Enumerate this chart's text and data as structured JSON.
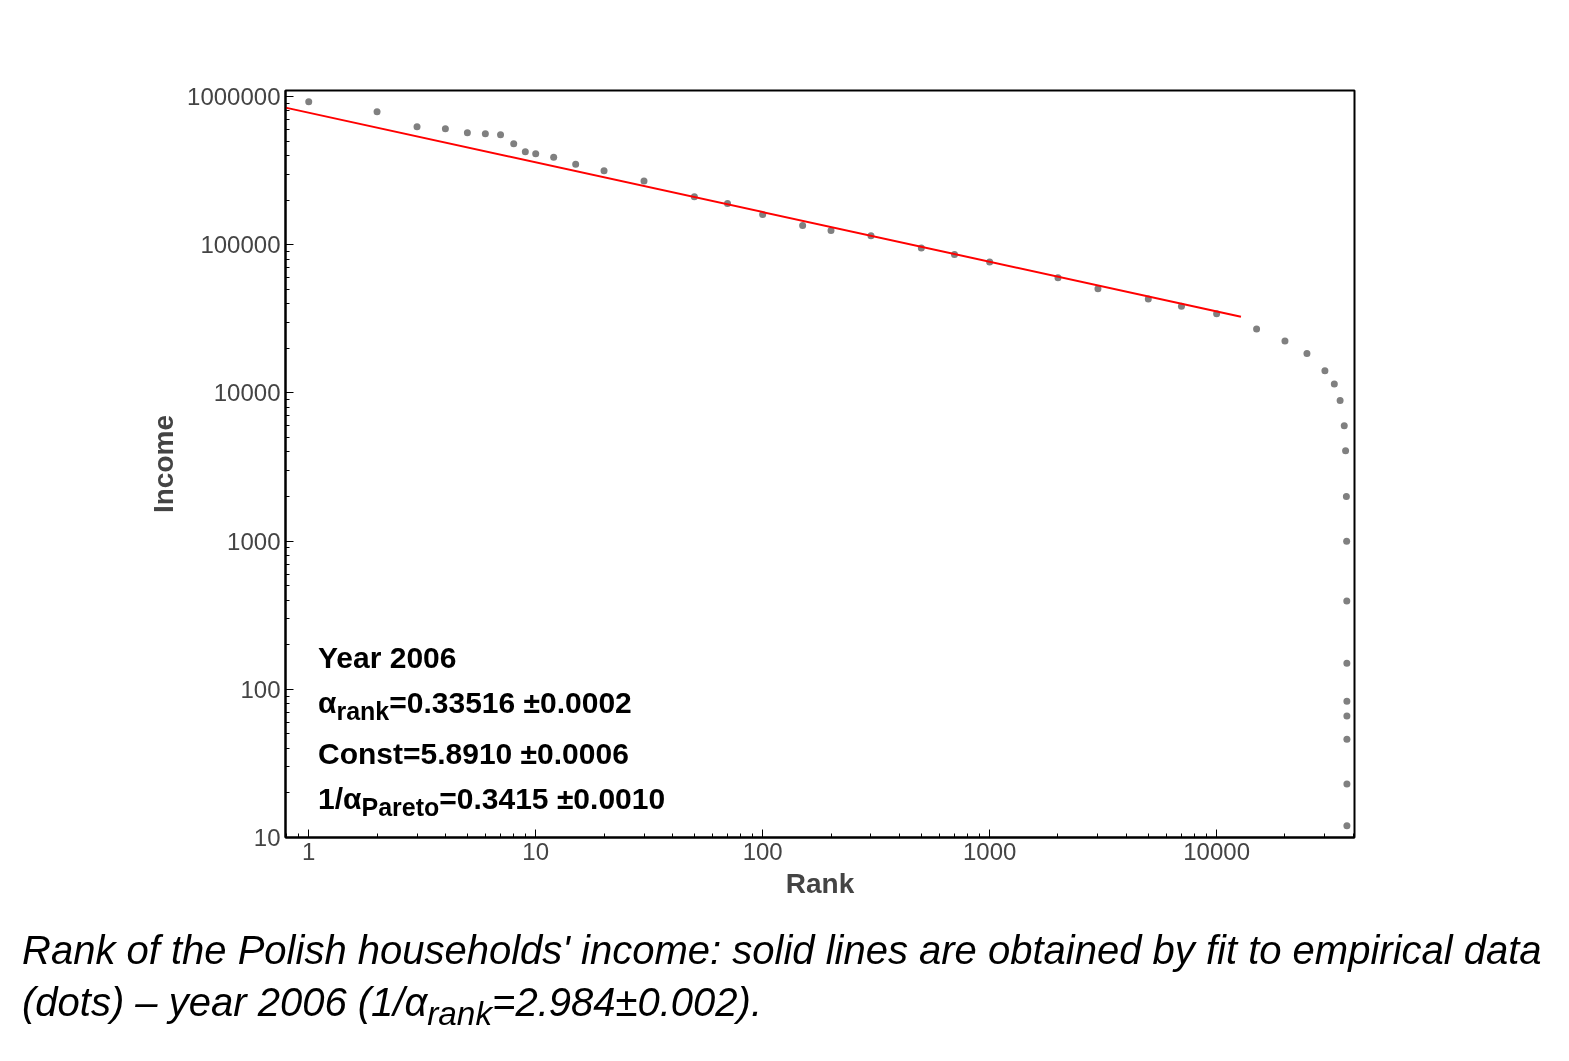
{
  "chart_data": {
    "type": "scatter",
    "xlabel": "Rank",
    "ylabel": "Income",
    "log": "xy",
    "xlim": [
      0.79,
      40500
    ],
    "ylim": [
      10,
      1100000
    ],
    "xticks": [
      1,
      10,
      100,
      1000,
      10000
    ],
    "yticks": [
      10,
      100,
      1000,
      10000,
      100000,
      1000000
    ],
    "grid": false,
    "x": [
      1,
      2,
      3,
      4,
      5,
      6,
      7,
      8,
      9,
      10,
      12,
      15,
      20,
      30,
      50,
      70,
      100,
      150,
      200,
      300,
      500,
      700,
      1000,
      2000,
      3000,
      5000,
      7000,
      10000,
      15000,
      20000,
      25000,
      30000,
      33000,
      35000,
      36500,
      37000,
      37300,
      37400,
      37450,
      37480,
      37490,
      37495,
      37498,
      37499,
      37500
    ],
    "series": [
      {
        "color": "#808080",
        "marker": "circle",
        "values": [
          925000,
          792000,
          627000,
          608000,
          571000,
          562000,
          553000,
          481000,
          425000,
          412000,
          390000,
          350000,
          316000,
          270000,
          211000,
          190000,
          160000,
          135000,
          125000,
          115000,
          95000,
          86000,
          76700,
          60000,
          50500,
          43000,
          38500,
          34200,
          27000,
          22400,
          18500,
          14100,
          11500,
          8900,
          6000,
          4070,
          2000,
          1000,
          394,
          150,
          83,
          66,
          46,
          23,
          12
        ]
      },
      {
        "type": "line",
        "color": "#ff0000",
        "x": [
          0.79,
          12800
        ],
        "values": [
          843000,
          32700
        ]
      }
    ],
    "annotations": [
      "Year 2006",
      "α$_{rank}$=0.33516  ±0.0002",
      "Const=5.8910   ±0.0006",
      "1/α$_{Pareto}$=0.3415 ±0.0010",
      "Rank of the Polish households' income: solid lines are obtained by fit to empirical data (dots) – year 2006 (1/α$_{rank}$=2.984±0.002)."
    ]
  }
}
